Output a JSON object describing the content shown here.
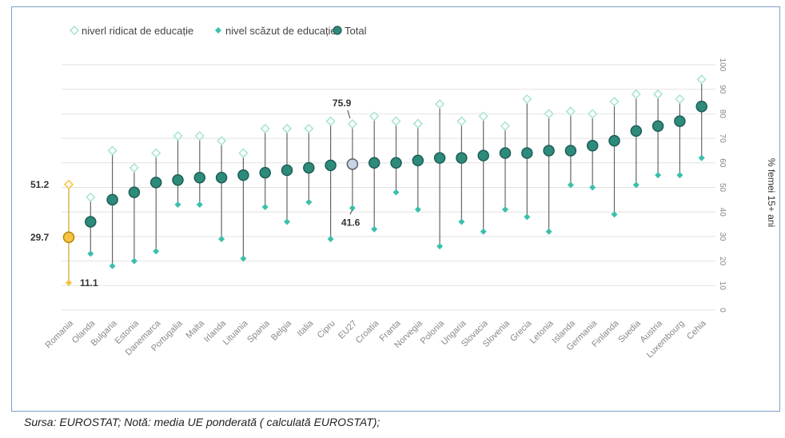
{
  "chart_data": {
    "type": "dot-range",
    "ylabel": "% femei 15+ ani",
    "ylim": [
      0,
      100
    ],
    "yticks": [
      "0",
      "10",
      "20",
      "30",
      "40",
      "50",
      "60",
      "70",
      "80",
      "90",
      "100"
    ],
    "legend": {
      "placement": "top-left",
      "items": [
        "niverl ridicat de educație",
        "nivel scăzut de educație",
        "Total"
      ]
    },
    "categories": [
      "Romania",
      "Olanda",
      "Bulgaria",
      "Estonia",
      "Danemarca",
      "Portugalia",
      "Malta",
      "Irlanda",
      "Lituania",
      "Spania",
      "Belgia",
      "Italia",
      "Cipru",
      "EU27",
      "Croatia",
      "Franta",
      "Norvegia",
      "Polonia",
      "Ungaria",
      "Slovacia",
      "Slovenia",
      "Grecia",
      "Letonia",
      "Islanda",
      "Germania",
      "Finlanda",
      "Suedia",
      "Austria",
      "Luxembourg",
      "Cehia"
    ],
    "series": [
      {
        "name": "niverl ridicat de educație",
        "values": [
          51.2,
          46,
          65,
          58,
          64,
          71,
          71,
          69,
          64,
          74,
          74,
          74,
          77,
          75.9,
          79,
          77,
          76,
          84,
          77,
          79,
          75,
          86,
          80,
          81,
          80,
          85,
          88,
          88,
          86,
          94
        ]
      },
      {
        "name": "nivel scăzut de educație",
        "values": [
          11.1,
          23,
          18,
          20,
          24,
          43,
          43,
          29,
          21,
          42,
          36,
          44,
          29,
          41.6,
          33,
          48,
          41,
          26,
          36,
          32,
          41,
          38,
          32,
          51,
          50,
          39,
          51,
          55,
          55,
          62
        ]
      },
      {
        "name": "Total",
        "values": [
          29.7,
          36,
          45,
          48,
          52,
          53,
          54,
          54,
          55,
          56,
          57,
          58,
          59,
          59.5,
          60,
          60,
          61,
          62,
          62,
          63,
          64,
          64,
          65,
          65,
          67,
          69,
          73,
          75,
          77,
          83
        ]
      }
    ],
    "annotations": [
      {
        "text": "51.2",
        "category": "Romania",
        "series": "niverl ridicat de educație"
      },
      {
        "text": "29.7",
        "category": "Romania",
        "series": "Total"
      },
      {
        "text": "11.1",
        "category": "Romania",
        "series": "nivel scăzut de educație"
      },
      {
        "text": "75.9",
        "category": "EU27",
        "series": "niverl ridicat de educație"
      },
      {
        "text": "41.6",
        "category": "EU27",
        "series": "nivel scăzut de educație"
      }
    ],
    "grid": true,
    "colors": {
      "high": "#a6e3d3",
      "low": "#3cbfad",
      "total_fill": "#2e8b7c",
      "total_stroke": "#1d5e54",
      "highlight": "#f5c242",
      "highlight_stroke": "#b8860b",
      "eu_fill": "#c9d3e3",
      "gridline": "#e2e2e2",
      "stem": "#666666"
    }
  },
  "source": "Sursa: EUROSTAT; Notă: media UE ponderată ( calculată EUROSTAT);"
}
